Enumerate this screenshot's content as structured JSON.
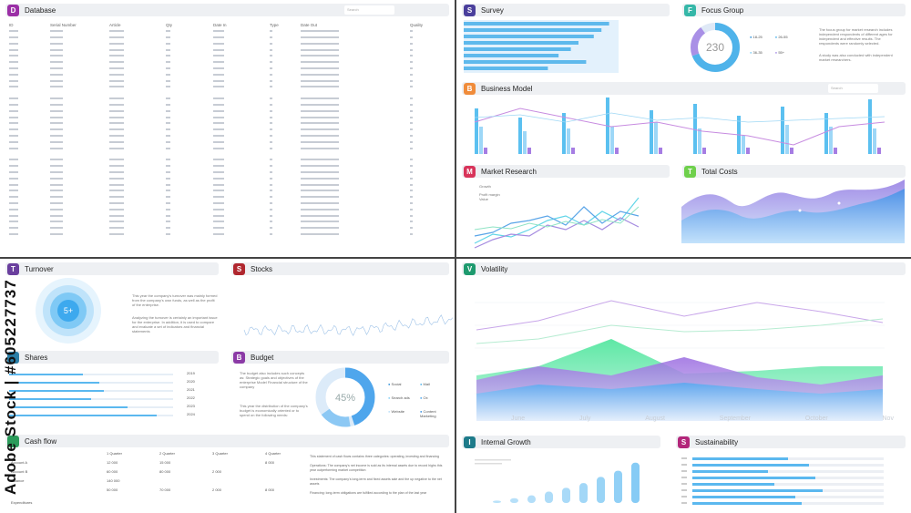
{
  "watermark": "Adobe Stock | #605227737",
  "colors": {
    "accent": "#4fb3ea",
    "purple": "#9b6fd8",
    "green": "#63e0a0",
    "grid": "#e8ebf0"
  },
  "database": {
    "badge": "D",
    "title": "Database",
    "search": "Search",
    "badge_color": "#9b2fa6",
    "columns": [
      "ID",
      "Serial Number",
      "Article",
      "Qty",
      "Date In",
      "Type",
      "Date Out",
      "Quality"
    ]
  },
  "survey": {
    "badge": "S",
    "title": "Survey",
    "badge_color": "#4a3f9c",
    "bars": [
      0.95,
      0.9,
      0.85,
      0.75,
      0.7,
      0.62,
      0.8,
      0.55
    ]
  },
  "focus_group": {
    "badge": "F",
    "title": "Focus Group",
    "badge_color": "#35b7a8",
    "value": "230",
    "legend": [
      "18-25",
      "26-55",
      "36-35",
      "55+"
    ],
    "text1": "The focus group for market research includes independent respondents of different ages for independent and effective results. The respondents were randomly selected.",
    "text2": "A study was also conducted with independent market researchers."
  },
  "business_model": {
    "badge": "B",
    "title": "Business Model",
    "badge_color": "#f08c3b",
    "search": "Search"
  },
  "market_research": {
    "badge": "M",
    "title": "Market Research",
    "badge_color": "#d8345a",
    "labels": [
      "Growth",
      "Profit margin",
      "Value"
    ]
  },
  "total_costs": {
    "badge": "T",
    "title": "Total Costs",
    "badge_color": "#6fd04c"
  },
  "turnover": {
    "badge": "T",
    "title": "Turnover",
    "badge_color": "#6a3f9e",
    "center": "5+",
    "text1": "This year the company's turnover was mainly formed from the company's own funds, as well as the profit of the enterprise.",
    "text2": "Analyzing the turnover is certainly an important issue for the enterprise. In addition, it is used to compare and evaluate a set of indicators and financial statements"
  },
  "stocks": {
    "badge": "S",
    "title": "Stocks",
    "badge_color": "#b0272f"
  },
  "shares": {
    "title": "Shares",
    "years": [
      "2019",
      "2020",
      "2021",
      "2022",
      "2023",
      "2024"
    ],
    "values": [
      0.45,
      0.55,
      0.58,
      0.5,
      0.72,
      0.9
    ]
  },
  "budget": {
    "badge": "B",
    "title": "Budget",
    "badge_color": "#8b3aa6",
    "percent": "45%",
    "text1": "The budget also includes such concepts as: Strategic goals and objectives of the enterprise Model Financial structure of the company",
    "text2": "This year the distribution of the company's budget is economically oriented or to spend on the following needs:",
    "legend": [
      "Social",
      "Mail",
      "Search ads",
      "Ox",
      "Website",
      "Content Marketing"
    ]
  },
  "cashflow": {
    "title": "Cash flow",
    "headers": [
      "1 Quarter",
      "2 Quarter",
      "3 Quarter",
      "4 Quarter"
    ],
    "rows": [
      {
        "name": "Account A",
        "vals": [
          "12 000",
          "15 000",
          "",
          "8 000"
        ]
      },
      {
        "name": "Account B",
        "vals": [
          "60 000",
          "80 000",
          "2 000",
          ""
        ]
      },
      {
        "name": "Balance",
        "vals": [
          "140 000",
          "",
          "",
          ""
        ]
      },
      {
        "name": "",
        "vals": [
          "50 000",
          "70 000",
          "2 000",
          "8 000"
        ]
      }
    ],
    "footer": "Expenditures",
    "notes": [
      "This statement of cash flows contains three categories: operating, investing and financing",
      "Operations: The company's net income is sold as its internal assets due to record highs this year outperforming market competition",
      "Investments: The company's long-term and fixed assets sale and the up negative to the net assets",
      "Financing: long-term obligations are fulfilled according to the plan of the last year"
    ]
  },
  "volatility": {
    "badge": "V",
    "title": "Volatility",
    "badge_color": "#1e9a6e",
    "months": [
      "June",
      "July",
      "August",
      "September",
      "October",
      "Nov"
    ]
  },
  "internal_growth": {
    "badge": "I",
    "title": "Internal Growth",
    "badge_color": "#1e7b8a",
    "bars": [
      0.05,
      0.1,
      0.16,
      0.24,
      0.32,
      0.42,
      0.55,
      0.68,
      0.85
    ]
  },
  "sustainability": {
    "badge": "S",
    "title": "Sustainability",
    "badge_color": "#b3267a",
    "bars": [
      0.7,
      0.85,
      0.55,
      0.9,
      0.6,
      0.95,
      0.75,
      0.8
    ]
  }
}
